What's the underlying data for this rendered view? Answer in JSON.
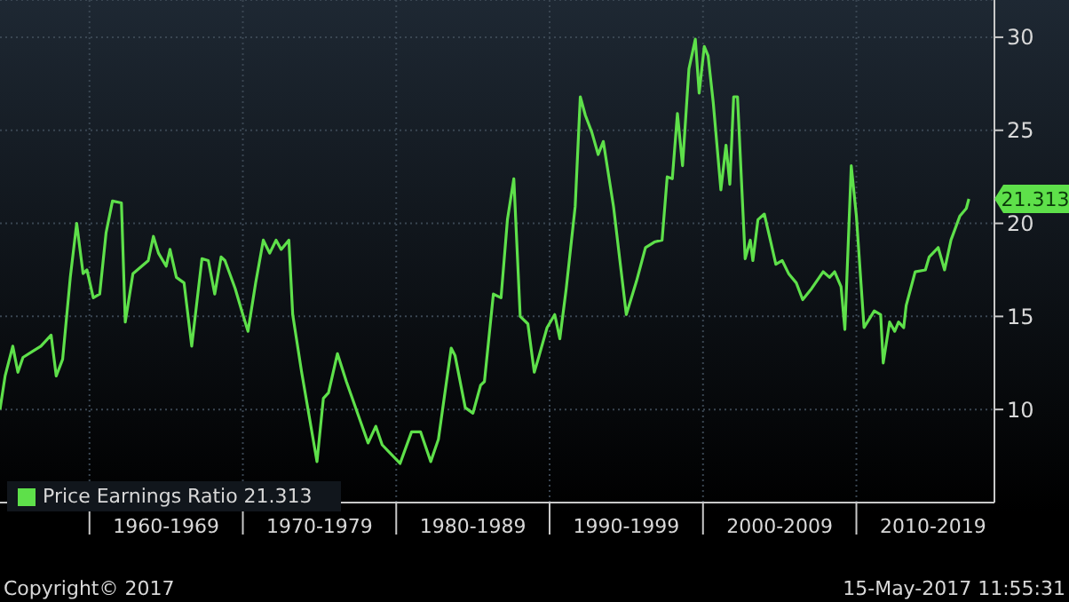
{
  "chart_data": {
    "type": "line",
    "x": [
      "1954-03",
      "1954-07",
      "1955-01",
      "1955-05",
      "1955-09",
      "1956-04",
      "1956-11",
      "1957-07",
      "1957-11",
      "1958-04",
      "1958-10",
      "1959-03",
      "1959-08",
      "1959-11",
      "1960-04",
      "1960-09",
      "1961-02",
      "1961-07",
      "1962-02",
      "1962-05",
      "1962-11",
      "1963-11",
      "1964-03",
      "1964-07",
      "1965-01",
      "1965-04",
      "1965-09",
      "1966-03",
      "1966-09",
      "1967-05",
      "1967-10",
      "1968-03",
      "1968-08",
      "1968-11",
      "1969-07",
      "1970-01",
      "1970-05",
      "1970-11",
      "1971-05",
      "1971-10",
      "1972-03",
      "1972-07",
      "1973-01",
      "1973-04",
      "1973-11",
      "1974-11",
      "1975-04",
      "1975-08",
      "1976-03",
      "1976-10",
      "1978-03",
      "1978-09",
      "1979-02",
      "1980-04",
      "1981-01",
      "1981-08",
      "1982-04",
      "1982-10",
      "1983-08",
      "1983-11",
      "1984-07",
      "1985-01",
      "1985-07",
      "1985-10",
      "1986-05",
      "1986-11",
      "1987-04",
      "1987-09",
      "1988-02",
      "1988-08",
      "1989-01",
      "1989-04",
      "1989-11",
      "1990-05",
      "1990-09",
      "1991-02",
      "1991-09",
      "1992-01",
      "1992-05",
      "1992-10",
      "1993-03",
      "1993-07",
      "1994-03",
      "1994-08",
      "1995-01",
      "1995-09",
      "1996-04",
      "1996-11",
      "1997-05",
      "1997-09",
      "1998-01",
      "1998-05",
      "1998-09",
      "1999-02",
      "1999-07",
      "1999-10",
      "2000-02",
      "2000-05",
      "2000-09",
      "2001-03",
      "2001-07",
      "2001-10",
      "2002-01",
      "2002-04",
      "2002-10",
      "2003-02",
      "2003-04",
      "2003-08",
      "2004-01",
      "2004-05",
      "2004-10",
      "2005-03",
      "2005-08",
      "2006-02",
      "2006-07",
      "2007-02",
      "2007-11",
      "2008-04",
      "2008-08",
      "2009-01",
      "2009-04",
      "2009-09",
      "2010-01",
      "2010-07",
      "2011-03",
      "2011-08",
      "2011-10",
      "2012-03",
      "2012-07",
      "2012-10",
      "2013-02",
      "2013-04",
      "2013-11",
      "2014-07",
      "2014-10",
      "2015-05",
      "2015-10",
      "2016-03",
      "2016-10",
      "2017-03",
      "2017-05"
    ],
    "series": [
      {
        "name": "Price Earnings Ratio 21.313",
        "color": "#5ee04a",
        "values": [
          10.0,
          11.8,
          13.4,
          12.0,
          12.8,
          13.1,
          13.4,
          14.0,
          11.8,
          12.7,
          17.1,
          20.0,
          17.3,
          17.5,
          16.0,
          16.2,
          19.5,
          21.2,
          21.1,
          14.7,
          17.3,
          18.0,
          19.3,
          18.4,
          17.7,
          18.6,
          17.1,
          16.8,
          13.4,
          18.1,
          18.0,
          16.2,
          18.2,
          18.0,
          16.5,
          15.1,
          14.2,
          16.8,
          19.1,
          18.4,
          19.1,
          18.6,
          19.1,
          15.1,
          12.0,
          7.2,
          10.6,
          10.9,
          13.0,
          11.5,
          8.2,
          9.1,
          8.1,
          7.1,
          8.8,
          8.8,
          7.2,
          8.4,
          13.3,
          12.9,
          10.1,
          9.8,
          11.3,
          11.5,
          16.2,
          16.0,
          20.2,
          22.4,
          15.0,
          14.6,
          12.0,
          12.7,
          14.4,
          15.1,
          13.8,
          16.5,
          20.9,
          26.8,
          25.8,
          24.9,
          23.7,
          24.4,
          20.9,
          18.0,
          15.1,
          16.9,
          18.7,
          19.0,
          19.1,
          22.5,
          22.4,
          25.9,
          23.1,
          28.3,
          29.9,
          27.0,
          29.5,
          29.0,
          26.5,
          21.8,
          24.2,
          22.1,
          26.8,
          26.8,
          18.1,
          19.1,
          18.0,
          20.2,
          20.5,
          19.3,
          17.8,
          18.0,
          17.3,
          16.8,
          15.9,
          16.5,
          17.4,
          17.1,
          17.4,
          16.6,
          14.3,
          23.1,
          20.4,
          14.4,
          15.3,
          15.1,
          12.5,
          14.7,
          14.2,
          14.7,
          14.4,
          15.6,
          17.4,
          17.5,
          18.2,
          18.7,
          17.5,
          19.1,
          20.4,
          20.8,
          21.313
        ],
        "value_labels": [
          null,
          null,
          null,
          null,
          null,
          null,
          null,
          null,
          null,
          null,
          null,
          null,
          null,
          null,
          null,
          null,
          null,
          null,
          null,
          null,
          null,
          null,
          null,
          null,
          null,
          null,
          null,
          null,
          null,
          null,
          null,
          null,
          null,
          null,
          null,
          null,
          null,
          null,
          null,
          null,
          null,
          null,
          null,
          null,
          null,
          null,
          null,
          null,
          null,
          null,
          null,
          null,
          null,
          null,
          null,
          null,
          null,
          null,
          null,
          null,
          null,
          null,
          null,
          null,
          null,
          null,
          null,
          null,
          null,
          null,
          null,
          null,
          null,
          null,
          null,
          null,
          null,
          null,
          null,
          null,
          null,
          null,
          null,
          null,
          null,
          null,
          null,
          null,
          null,
          null,
          null,
          null,
          null,
          null,
          null,
          null,
          null,
          null,
          null,
          null,
          null,
          null,
          null,
          null,
          null,
          null,
          null,
          null,
          null,
          null,
          null,
          null,
          null,
          null,
          null,
          null,
          null,
          null,
          null,
          null,
          null,
          null,
          null,
          null,
          null,
          null,
          null,
          null,
          null,
          null,
          null,
          null,
          null,
          null,
          null,
          null,
          null,
          null,
          null,
          null,
          "21.313"
        ]
      }
    ],
    "xlim": [
      "1954-03",
      "2019-01"
    ],
    "xticks": [
      {
        "value": "1960-01",
        "label": null
      },
      {
        "value": "1965-01",
        "label": "1960-1969"
      },
      {
        "value": "1970-01",
        "label": null
      },
      {
        "value": "1975-01",
        "label": "1970-1979"
      },
      {
        "value": "1980-01",
        "label": null
      },
      {
        "value": "1985-01",
        "label": "1980-1989"
      },
      {
        "value": "1990-01",
        "label": null
      },
      {
        "value": "1995-01",
        "label": "1990-1999"
      },
      {
        "value": "2000-01",
        "label": null
      },
      {
        "value": "2005-01",
        "label": "2000-2009"
      },
      {
        "value": "2010-01",
        "label": null
      },
      {
        "value": "2015-01",
        "label": "2010-2019"
      }
    ],
    "ylim": [
      5,
      32
    ],
    "yticks": [
      10,
      15,
      20,
      25,
      30
    ],
    "grid": true,
    "legend": "bottom left",
    "annotations": [
      "Copyright© 2017",
      "15-May-2017 11:55:31"
    ]
  }
}
